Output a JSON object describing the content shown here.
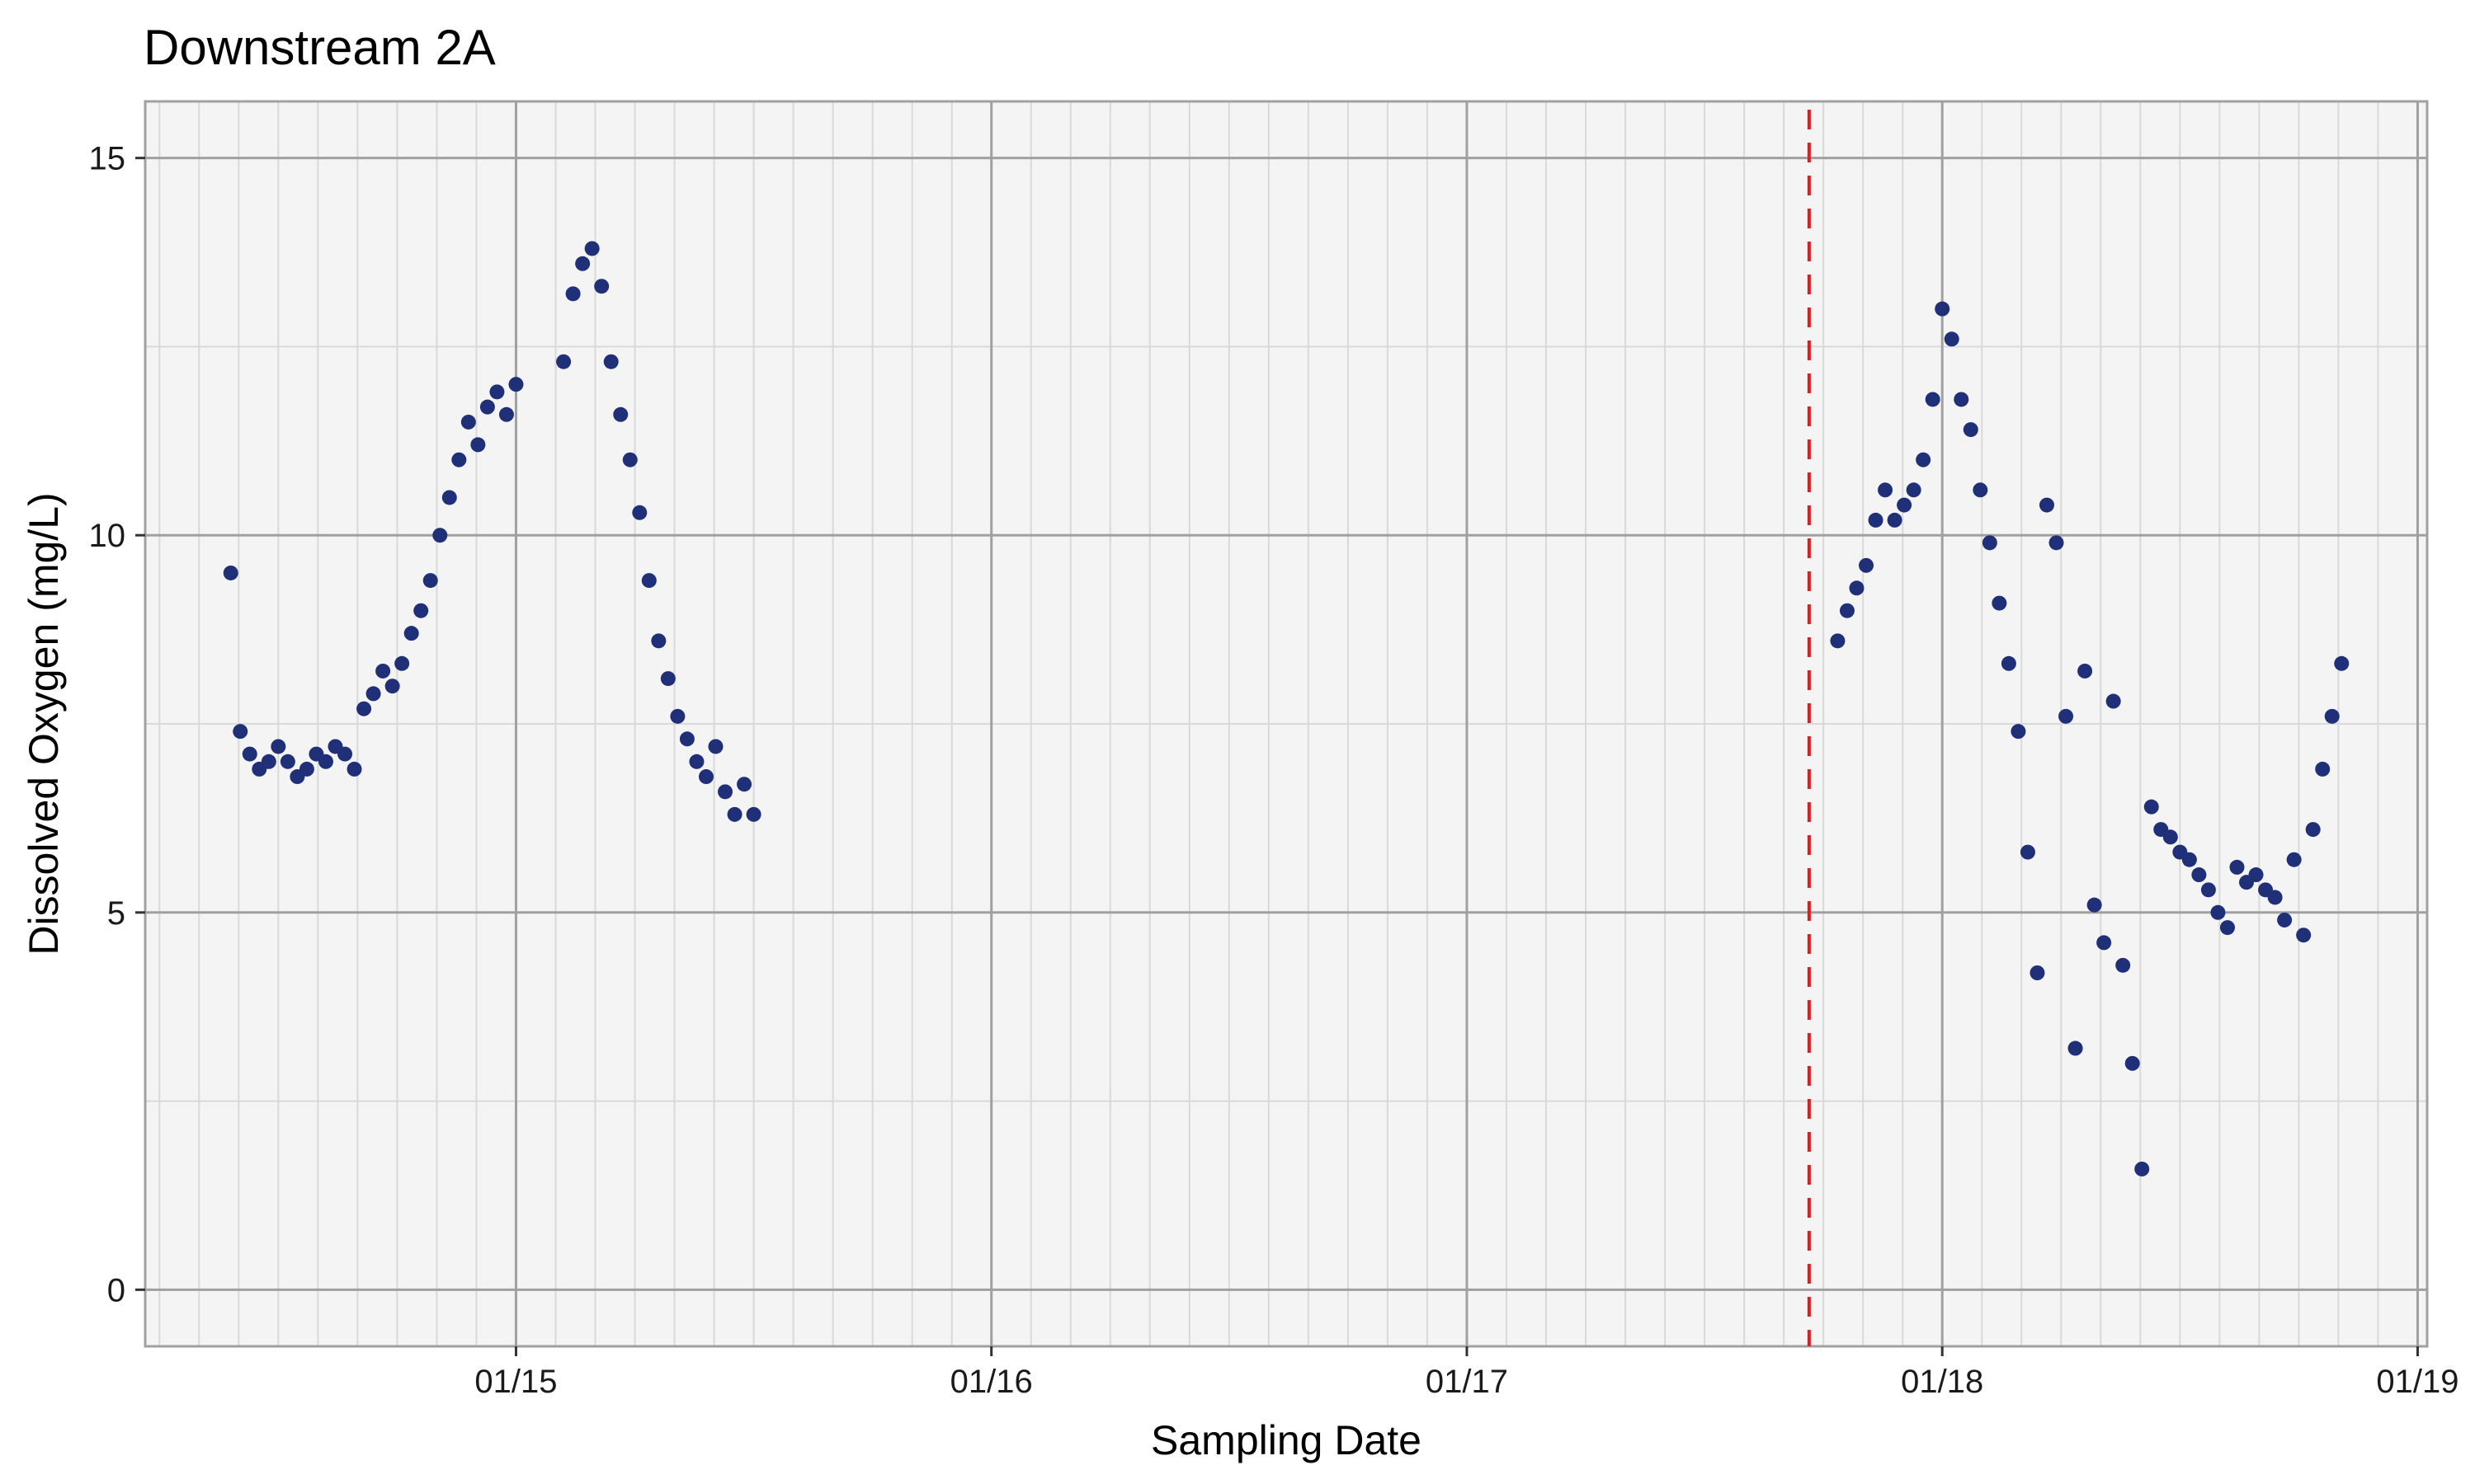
{
  "chart_data": {
    "type": "scatter",
    "title": "Downstream 2A",
    "xlabel": "Sampling Date",
    "ylabel": "Dissolved Oxygen (mg/L)",
    "x_ticks": [
      "01/15",
      "01/16",
      "01/17",
      "01/18",
      "01/19"
    ],
    "x_tick_years": [
      2015,
      2016,
      2017,
      2018,
      2019
    ],
    "y_ticks": [
      0,
      5,
      10,
      15
    ],
    "xlim": [
      2014.22,
      2019.02
    ],
    "ylim": [
      -0.75,
      15.75
    ],
    "reference_line": {
      "x": 2017.72,
      "color": "#e41a1c",
      "style": "dashed"
    },
    "grid": true,
    "background": "#f4f4f4",
    "grid_color": "#a0a0a0",
    "minor_grid_color": "#d9d9d9",
    "point_color": "#1f2f78",
    "reference_color": "#e41a1c",
    "series": [
      {
        "x": [
          2014.4,
          2014.42,
          2014.44,
          2014.46,
          2014.48,
          2014.5,
          2014.52,
          2014.54,
          2014.56,
          2014.58,
          2014.6,
          2014.62,
          2014.64,
          2014.66,
          2014.68,
          2014.7,
          2014.72,
          2014.74,
          2014.76,
          2014.78,
          2014.8,
          2014.82,
          2014.84,
          2014.86,
          2014.88,
          2014.9,
          2014.92,
          2014.94,
          2014.96,
          2014.98,
          2015.0,
          2015.1,
          2015.12,
          2015.14,
          2015.16,
          2015.18,
          2015.2,
          2015.22,
          2015.24,
          2015.26,
          2015.28,
          2015.3,
          2015.32,
          2015.34,
          2015.36,
          2015.38,
          2015.4,
          2015.42,
          2015.44,
          2015.46,
          2015.48,
          2015.5,
          2017.78,
          2017.8,
          2017.82,
          2017.84,
          2017.86,
          2017.88,
          2017.9,
          2017.92,
          2017.94,
          2017.96,
          2017.98,
          2018.0,
          2018.02,
          2018.04,
          2018.06,
          2018.08,
          2018.1,
          2018.12,
          2018.14,
          2018.16,
          2018.18,
          2018.2,
          2018.22,
          2018.24,
          2018.26,
          2018.28,
          2018.3,
          2018.32,
          2018.34,
          2018.36,
          2018.38,
          2018.4,
          2018.42,
          2018.44,
          2018.46,
          2018.48,
          2018.5,
          2018.52,
          2018.54,
          2018.56,
          2018.58,
          2018.6,
          2018.62,
          2018.64,
          2018.66,
          2018.68,
          2018.7,
          2018.72,
          2018.74,
          2018.76,
          2018.78,
          2018.8,
          2018.82,
          2018.84
        ],
        "y": [
          9.5,
          7.4,
          7.1,
          6.9,
          7.0,
          7.2,
          7.0,
          6.8,
          6.9,
          7.1,
          7.0,
          7.2,
          7.1,
          6.9,
          7.7,
          7.9,
          8.2,
          8.0,
          8.3,
          8.7,
          9.0,
          9.4,
          10.0,
          10.5,
          11.0,
          11.5,
          11.2,
          11.7,
          11.9,
          11.6,
          12.0,
          12.3,
          13.2,
          13.6,
          13.8,
          13.3,
          12.3,
          11.6,
          11.0,
          10.3,
          9.4,
          8.6,
          8.1,
          7.6,
          7.3,
          7.0,
          6.8,
          7.2,
          6.6,
          6.3,
          6.7,
          6.3,
          8.6,
          9.0,
          9.3,
          9.6,
          10.2,
          10.6,
          10.2,
          10.4,
          10.6,
          11.0,
          11.8,
          13.0,
          12.6,
          11.8,
          11.4,
          10.6,
          9.9,
          9.1,
          8.3,
          7.4,
          5.8,
          4.2,
          10.4,
          9.9,
          7.6,
          3.2,
          8.2,
          5.1,
          4.6,
          7.8,
          4.3,
          3.0,
          1.6,
          6.4,
          6.1,
          6.0,
          5.8,
          5.7,
          5.5,
          5.3,
          5.0,
          4.8,
          5.6,
          5.4,
          5.5,
          5.3,
          5.2,
          4.9,
          5.7,
          4.7,
          6.1,
          6.9,
          7.6,
          8.3
        ]
      }
    ]
  }
}
